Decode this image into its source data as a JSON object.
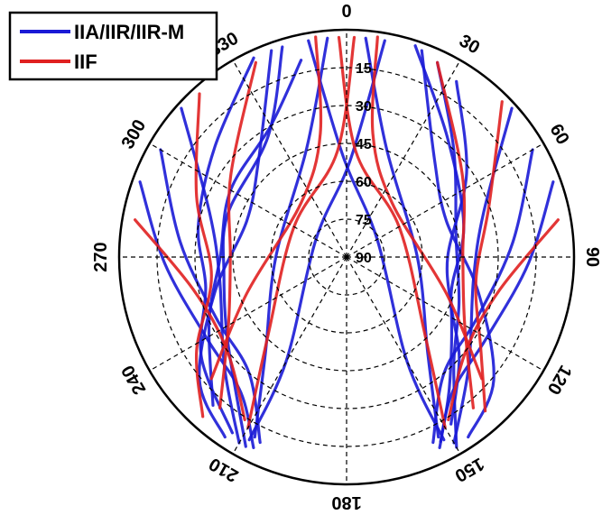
{
  "chart_data": {
    "type": "line",
    "subtype": "polar-skyplot",
    "title": "",
    "azimuth_ticks": [
      "0",
      "30",
      "60",
      "90",
      "120",
      "150",
      "180",
      "210",
      "240",
      "270",
      "300",
      "330"
    ],
    "elevation_ticks": [
      "15",
      "30",
      "45",
      "60",
      "75",
      "90"
    ],
    "elevation_range": [
      0,
      90
    ],
    "grid": true,
    "legend": {
      "position": "top-left"
    },
    "colors": {
      "IIA/IIR/IIR-M": "#1a1ad6",
      "IIF": "#e02020"
    },
    "series": [
      {
        "name": "IIA/IIR/IIR-M",
        "tracks": [
          [
            [
              343,
              3
            ],
            [
              327,
              33
            ],
            [
              290,
              40
            ],
            [
              262,
              41
            ],
            [
              234,
              32
            ],
            [
              208,
              5
            ]
          ],
          [
            [
              347,
              10
            ],
            [
              330,
              30
            ],
            [
              300,
              37
            ],
            [
              270,
              40
            ],
            [
              245,
              30
            ],
            [
              222,
              11
            ]
          ],
          [
            [
              25,
              5
            ],
            [
              45,
              30
            ],
            [
              80,
              46
            ],
            [
              112,
              42
            ],
            [
              135,
              30
            ],
            [
              150,
              3
            ]
          ],
          [
            [
              32,
              8
            ],
            [
              55,
              32
            ],
            [
              90,
              50
            ],
            [
              120,
              42
            ],
            [
              142,
              24
            ],
            [
              153,
              8
            ]
          ],
          [
            [
              60,
              5
            ],
            [
              85,
              24
            ],
            [
              115,
              33
            ],
            [
              140,
              30
            ],
            [
              155,
              9
            ]
          ],
          [
            [
              300,
              5
            ],
            [
              275,
              24
            ],
            [
              245,
              33
            ],
            [
              220,
              30
            ],
            [
              205,
              9
            ]
          ],
          [
            [
              335,
              3
            ],
            [
              310,
              22
            ],
            [
              282,
              30
            ],
            [
              258,
              33
            ],
            [
              235,
              20
            ],
            [
              213,
              7
            ]
          ],
          [
            [
              18,
              2
            ],
            [
              40,
              28
            ],
            [
              75,
              42
            ],
            [
              110,
              46
            ],
            [
              132,
              30
            ],
            [
              148,
              12
            ]
          ],
          [
            [
              350,
              3
            ],
            [
              358,
              50
            ],
            [
              60,
              76
            ],
            [
              150,
              42
            ],
            [
              152,
              8
            ]
          ],
          [
            [
              10,
              3
            ],
            [
              2,
              52
            ],
            [
              300,
              76
            ],
            [
              210,
              42
            ],
            [
              208,
              8
            ]
          ],
          [
            [
              355,
              3
            ],
            [
              340,
              44
            ],
            [
              270,
              62
            ],
            [
              220,
              40
            ],
            [
              207,
              10
            ]
          ],
          [
            [
              5,
              3
            ],
            [
              20,
              44
            ],
            [
              90,
              62
            ],
            [
              140,
              40
            ],
            [
              153,
              10
            ]
          ],
          [
            [
              340,
              3
            ],
            [
              318,
              38
            ],
            [
              290,
              48
            ],
            [
              255,
              36
            ],
            [
              230,
              14
            ],
            [
              214,
              4
            ]
          ],
          [
            [
              20,
              3
            ],
            [
              42,
              38
            ],
            [
              70,
              48
            ],
            [
              105,
              36
            ],
            [
              130,
              14
            ],
            [
              146,
              4
            ]
          ],
          [
            [
              48,
              2
            ],
            [
              72,
              33
            ],
            [
              100,
              39
            ],
            [
              132,
              25
            ],
            [
              150,
              5
            ]
          ],
          [
            [
              312,
              2
            ],
            [
              288,
              33
            ],
            [
              260,
              39
            ],
            [
              228,
              25
            ],
            [
              210,
              5
            ]
          ],
          [
            [
              290,
              3
            ],
            [
              268,
              18
            ],
            [
              240,
              26
            ],
            [
              218,
              22
            ],
            [
              206,
              6
            ]
          ],
          [
            [
              70,
              3
            ],
            [
              92,
              18
            ],
            [
              120,
              26
            ],
            [
              142,
              22
            ],
            [
              154,
              6
            ]
          ]
        ]
      },
      {
        "name": "IIF",
        "tracks": [
          [
            [
              2,
              3
            ],
            [
              355,
              48
            ],
            [
              300,
              66
            ],
            [
              225,
              46
            ],
            [
              210,
              12
            ]
          ],
          [
            [
              358,
              3
            ],
            [
              5,
              48
            ],
            [
              60,
              66
            ],
            [
              135,
              46
            ],
            [
              150,
              12
            ]
          ],
          [
            [
              335,
              5
            ],
            [
              305,
              34
            ],
            [
              270,
              44
            ],
            [
              240,
              36
            ],
            [
              220,
              12
            ]
          ],
          [
            [
              25,
              5
            ],
            [
              55,
              34
            ],
            [
              90,
              44
            ],
            [
              120,
              36
            ],
            [
              140,
              12
            ]
          ],
          [
            [
              8,
              2
            ],
            [
              12,
              40
            ],
            [
              40,
              62
            ],
            [
              110,
              48
            ],
            [
              132,
              18
            ]
          ],
          [
            [
              352,
              2
            ],
            [
              348,
              40
            ],
            [
              320,
              62
            ],
            [
              250,
              48
            ],
            [
              228,
              18
            ]
          ],
          [
            [
              280,
              5
            ],
            [
              258,
              28
            ],
            [
              232,
              30
            ],
            [
              212,
              14
            ]
          ],
          [
            [
              80,
              5
            ],
            [
              102,
              28
            ],
            [
              128,
              30
            ],
            [
              148,
              14
            ]
          ],
          [
            [
              45,
              3
            ],
            [
              70,
              30
            ],
            [
              100,
              38
            ],
            [
              124,
              26
            ],
            [
              138,
              8
            ]
          ],
          [
            [
              318,
              3
            ],
            [
              292,
              26
            ],
            [
              262,
              36
            ],
            [
              238,
              20
            ],
            [
              222,
              5
            ]
          ]
        ]
      }
    ]
  }
}
